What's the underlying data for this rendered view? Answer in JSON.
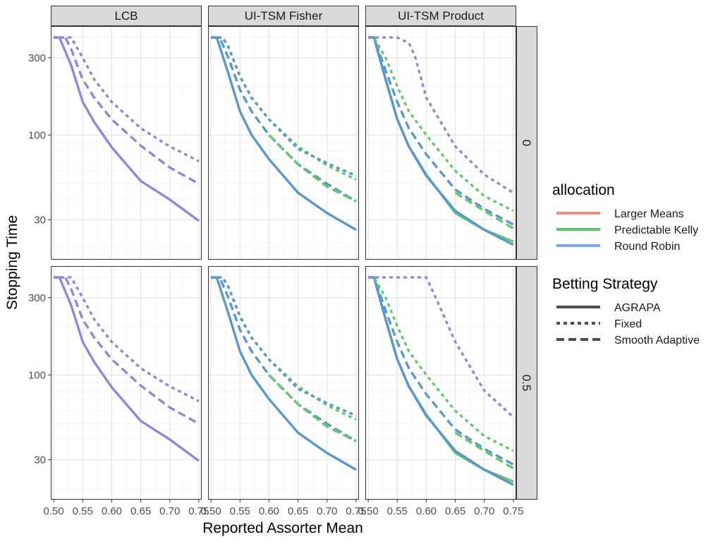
{
  "chart_data": {
    "type": "line",
    "title": "",
    "xlabel": "Reported Assorter Mean",
    "ylabel": "Stopping Time",
    "y_scale": "log",
    "xlim": [
      0.495,
      0.755
    ],
    "ylim": [
      17,
      470
    ],
    "x_ticks": [
      0.5,
      0.55,
      0.6,
      0.65,
      0.7,
      0.75
    ],
    "x_tick_labels": [
      "0.50",
      "0.55",
      "0.60",
      "0.65",
      "0.70",
      "0.75"
    ],
    "y_ticks": [
      30,
      100,
      300
    ],
    "y_tick_labels": [
      "30",
      "100",
      "300"
    ],
    "grid": true,
    "legend_position": "right",
    "columns": [
      "LCB",
      "UI-TSM Fisher",
      "UI-TSM Product"
    ],
    "rows": [
      "0",
      "0.5"
    ],
    "allocation_legend": {
      "title": "allocation",
      "entries": [
        {
          "label": "Larger Means",
          "color": "#F08A80"
        },
        {
          "label": "Predictable Kelly",
          "color": "#5BC463"
        },
        {
          "label": "Round Robin",
          "color": "#7AA6F0"
        }
      ]
    },
    "strategy_legend": {
      "title": "Betting Strategy",
      "entries": [
        {
          "label": "AGRAPA",
          "dash": "solid"
        },
        {
          "label": "Fixed",
          "dash": "dotted"
        },
        {
          "label": "Smooth Adaptive",
          "dash": "dashed"
        }
      ]
    },
    "line_colors": {
      "overlap_purple": "#8C89DA",
      "fisher_blue": "#5B97CC",
      "green": "#66C76B"
    },
    "panels": [
      {
        "column": "LCB",
        "row": "0",
        "series": [
          {
            "strategy": "AGRAPA",
            "color": "overlap_purple",
            "x": [
              0.5,
              0.51,
              0.53,
              0.55,
              0.57,
              0.6,
              0.65,
              0.7,
              0.75
            ],
            "y": [
              400,
              400,
              270,
              160,
              120,
              84,
              52,
              40,
              29.5
            ]
          },
          {
            "strategy": "Smooth Adaptive",
            "color": "overlap_purple",
            "x": [
              0.5,
              0.52,
              0.53,
              0.55,
              0.57,
              0.6,
              0.65,
              0.7,
              0.75
            ],
            "y": [
              400,
              400,
              340,
              220,
              170,
              125,
              86,
              63,
              50
            ]
          },
          {
            "strategy": "Fixed",
            "color": "overlap_purple",
            "x": [
              0.5,
              0.53,
              0.55,
              0.57,
              0.6,
              0.65,
              0.7,
              0.75
            ],
            "y": [
              400,
              400,
              300,
              220,
              160,
              110,
              85,
              69
            ]
          }
        ]
      },
      {
        "column": "UI-TSM Fisher",
        "row": "0",
        "series": [
          {
            "strategy": "AGRAPA",
            "color": "fisher_blue",
            "x": [
              0.5,
              0.51,
              0.53,
              0.55,
              0.57,
              0.6,
              0.65,
              0.7,
              0.75
            ],
            "y": [
              400,
              400,
              240,
              140,
              100,
              71,
              44,
              33,
              26
            ]
          },
          {
            "strategy": "Smooth Adaptive",
            "color": "fisher_blue",
            "x": [
              0.5,
              0.515,
              0.53,
              0.55,
              0.57,
              0.6,
              0.65,
              0.7,
              0.75
            ],
            "y": [
              400,
              400,
              300,
              190,
              140,
              100,
              66,
              50,
              39
            ]
          },
          {
            "strategy": "Fixed",
            "color": "green",
            "x": [
              0.5,
              0.52,
              0.53,
              0.55,
              0.57,
              0.6,
              0.65,
              0.7,
              0.75
            ],
            "y": [
              400,
              400,
              350,
              230,
              170,
              125,
              85,
              65,
              53
            ]
          },
          {
            "strategy": "Fixed",
            "color": "fisher_blue",
            "x": [
              0.5,
              0.52,
              0.53,
              0.55,
              0.57,
              0.6,
              0.65,
              0.7,
              0.75
            ],
            "y": [
              400,
              400,
              350,
              230,
              170,
              125,
              82,
              67,
              56
            ]
          },
          {
            "strategy": "Smooth Adaptive",
            "color": "green",
            "x": [
              0.6,
              0.65,
              0.7,
              0.75
            ],
            "y": [
              100,
              66,
              48,
              39
            ]
          }
        ]
      },
      {
        "column": "UI-TSM Product",
        "row": "0",
        "series": [
          {
            "strategy": "AGRAPA",
            "color": "green",
            "x": [
              0.5,
              0.51,
              0.53,
              0.55,
              0.57,
              0.6,
              0.65,
              0.7,
              0.75
            ],
            "y": [
              400,
              400,
              220,
              125,
              85,
              57,
              33,
              26,
              22
            ]
          },
          {
            "strategy": "AGRAPA",
            "color": "fisher_blue",
            "x": [
              0.5,
              0.51,
              0.53,
              0.55,
              0.57,
              0.6,
              0.65,
              0.7,
              0.75
            ],
            "y": [
              400,
              400,
              220,
              125,
              85,
              56,
              34,
              26,
              21
            ]
          },
          {
            "strategy": "Smooth Adaptive",
            "color": "fisher_blue",
            "x": [
              0.5,
              0.51,
              0.53,
              0.55,
              0.57,
              0.6,
              0.65,
              0.7,
              0.75
            ],
            "y": [
              400,
              400,
              250,
              160,
              110,
              76,
              46,
              35,
              28
            ]
          },
          {
            "strategy": "Smooth Adaptive",
            "color": "green",
            "x": [
              0.65,
              0.7,
              0.75
            ],
            "y": [
              44,
              34,
              26.5
            ]
          },
          {
            "strategy": "Fixed",
            "color": "green",
            "x": [
              0.5,
              0.51,
              0.53,
              0.55,
              0.57,
              0.6,
              0.65,
              0.7,
              0.75
            ],
            "y": [
              400,
              400,
              300,
              200,
              140,
              100,
              60,
              42,
              34
            ]
          },
          {
            "strategy": "Fixed",
            "color": "overlap_purple",
            "x": [
              0.5,
              0.55,
              0.57,
              0.58,
              0.6,
              0.65,
              0.7,
              0.75
            ],
            "y": [
              400,
              400,
              370,
              310,
              170,
              85,
              57,
              44
            ]
          }
        ]
      },
      {
        "column": "LCB",
        "row": "0.5",
        "series": [
          {
            "strategy": "AGRAPA",
            "color": "overlap_purple",
            "x": [
              0.5,
              0.51,
              0.53,
              0.55,
              0.57,
              0.6,
              0.65,
              0.7,
              0.75
            ],
            "y": [
              400,
              400,
              270,
              160,
              120,
              84,
              52,
              40,
              29.5
            ]
          },
          {
            "strategy": "Smooth Adaptive",
            "color": "overlap_purple",
            "x": [
              0.5,
              0.52,
              0.53,
              0.55,
              0.57,
              0.6,
              0.65,
              0.7,
              0.75
            ],
            "y": [
              400,
              400,
              340,
              220,
              170,
              125,
              86,
              63,
              50
            ]
          },
          {
            "strategy": "Fixed",
            "color": "overlap_purple",
            "x": [
              0.5,
              0.53,
              0.55,
              0.57,
              0.6,
              0.65,
              0.7,
              0.75
            ],
            "y": [
              400,
              400,
              300,
              220,
              160,
              110,
              85,
              69
            ]
          }
        ]
      },
      {
        "column": "UI-TSM Fisher",
        "row": "0.5",
        "series": [
          {
            "strategy": "AGRAPA",
            "color": "fisher_blue",
            "x": [
              0.5,
              0.51,
              0.53,
              0.55,
              0.57,
              0.6,
              0.65,
              0.7,
              0.75
            ],
            "y": [
              400,
              400,
              240,
              140,
              100,
              71,
              44,
              33,
              26
            ]
          },
          {
            "strategy": "Smooth Adaptive",
            "color": "fisher_blue",
            "x": [
              0.5,
              0.515,
              0.53,
              0.55,
              0.57,
              0.6,
              0.65,
              0.7,
              0.75
            ],
            "y": [
              400,
              400,
              300,
              190,
              140,
              100,
              66,
              50,
              39
            ]
          },
          {
            "strategy": "Fixed",
            "color": "green",
            "x": [
              0.5,
              0.52,
              0.53,
              0.55,
              0.57,
              0.6,
              0.65,
              0.7,
              0.75
            ],
            "y": [
              400,
              400,
              350,
              230,
              170,
              125,
              85,
              65,
              53
            ]
          },
          {
            "strategy": "Fixed",
            "color": "fisher_blue",
            "x": [
              0.5,
              0.52,
              0.53,
              0.55,
              0.57,
              0.6,
              0.65,
              0.7,
              0.75
            ],
            "y": [
              400,
              400,
              350,
              230,
              170,
              125,
              82,
              67,
              56
            ]
          },
          {
            "strategy": "Smooth Adaptive",
            "color": "green",
            "x": [
              0.6,
              0.65,
              0.7,
              0.75
            ],
            "y": [
              100,
              66,
              48,
              39
            ]
          }
        ]
      },
      {
        "column": "UI-TSM Product",
        "row": "0.5",
        "series": [
          {
            "strategy": "AGRAPA",
            "color": "green",
            "x": [
              0.5,
              0.51,
              0.53,
              0.55,
              0.57,
              0.6,
              0.65,
              0.7,
              0.75
            ],
            "y": [
              400,
              400,
              220,
              125,
              85,
              57,
              33,
              26,
              22
            ]
          },
          {
            "strategy": "AGRAPA",
            "color": "fisher_blue",
            "x": [
              0.5,
              0.51,
              0.53,
              0.55,
              0.57,
              0.6,
              0.65,
              0.7,
              0.75
            ],
            "y": [
              400,
              400,
              220,
              125,
              85,
              56,
              34,
              26,
              21
            ]
          },
          {
            "strategy": "Smooth Adaptive",
            "color": "fisher_blue",
            "x": [
              0.5,
              0.51,
              0.53,
              0.55,
              0.57,
              0.6,
              0.65,
              0.7,
              0.75
            ],
            "y": [
              400,
              400,
              250,
              160,
              110,
              76,
              46,
              35,
              28
            ]
          },
          {
            "strategy": "Smooth Adaptive",
            "color": "green",
            "x": [
              0.65,
              0.7,
              0.75
            ],
            "y": [
              44,
              34,
              26.5
            ]
          },
          {
            "strategy": "Fixed",
            "color": "green",
            "x": [
              0.5,
              0.51,
              0.53,
              0.55,
              0.57,
              0.6,
              0.65,
              0.7,
              0.75
            ],
            "y": [
              400,
              400,
              300,
              200,
              140,
              100,
              60,
              42,
              34
            ]
          },
          {
            "strategy": "Fixed",
            "color": "overlap_purple",
            "x": [
              0.5,
              0.6,
              0.62,
              0.65,
              0.7,
              0.75
            ],
            "y": [
              400,
              400,
              280,
              160,
              80,
              55
            ]
          }
        ]
      }
    ]
  }
}
